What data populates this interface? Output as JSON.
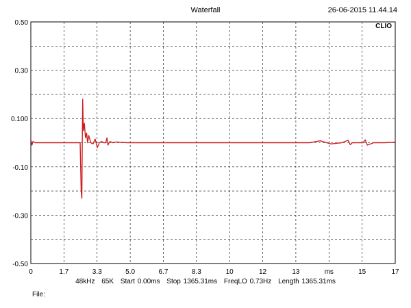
{
  "header": {
    "title": "Waterfall",
    "datetime": "26-06-2015 11.44.14",
    "brand": "CLIO"
  },
  "footer": {
    "info": [
      "48kHz",
      "65K",
      "Start 0.00ms",
      "Stop 1365.31ms",
      "FreqLO 0.73Hz",
      "Length 1365.31ms"
    ],
    "file_label": "File:"
  },
  "chart_data": {
    "type": "line",
    "title": "Waterfall",
    "xlabel": "ms",
    "ylabel": "",
    "xlim": [
      0,
      17
    ],
    "ylim": [
      -0.5,
      0.5
    ],
    "x_tick_labels": [
      "0",
      "1.7",
      "3.3",
      "5.0",
      "6.7",
      "8.3",
      "10",
      "12",
      "13",
      "ms",
      "15",
      "17"
    ],
    "y_tick_labels": [
      "0.50",
      "0.30",
      "0.100",
      "-0.10",
      "-0.30",
      "-0.50"
    ],
    "grid": true,
    "line_color": "#cc1f1f",
    "series": [
      {
        "x": [
          0,
          0.05,
          0.1,
          0.2,
          0.5,
          1.0,
          1.5,
          2.0,
          2.3,
          2.35,
          2.38,
          2.4,
          2.42,
          2.45,
          2.5,
          2.55,
          2.6,
          2.65,
          2.7,
          2.8,
          2.9,
          3.0,
          3.1,
          3.2,
          3.3,
          3.4,
          3.5,
          3.55,
          3.6,
          3.65,
          3.7,
          3.8,
          4.0,
          4.5,
          5.0,
          6.0,
          7.0,
          8.0,
          9.0,
          10.0,
          11.0,
          12.0,
          12.5,
          13.0,
          13.5,
          14.0,
          14.5,
          14.8,
          14.9,
          15.0,
          15.5,
          15.6,
          15.7,
          16.0,
          16.5,
          17.0
        ],
        "y": [
          0.01,
          -0.01,
          0.005,
          0.0,
          0.0,
          0.0,
          0.0,
          0.0,
          0.0,
          -0.2,
          -0.23,
          0.0,
          0.18,
          0.05,
          0.08,
          0.02,
          0.04,
          0.0,
          0.03,
          0.0,
          -0.005,
          0.015,
          -0.02,
          0.0,
          0.005,
          0.0,
          0.0,
          0.02,
          -0.01,
          0.0,
          0.005,
          0.0,
          0.003,
          0.0,
          0.0,
          0.0,
          0.0,
          0.0,
          0.0,
          0.0,
          0.0,
          0.0,
          0.0,
          0.0,
          0.008,
          -0.005,
          0.0,
          0.01,
          -0.008,
          0.0,
          0.0,
          0.012,
          -0.01,
          0.0,
          0.0,
          0.002
        ]
      }
    ]
  }
}
